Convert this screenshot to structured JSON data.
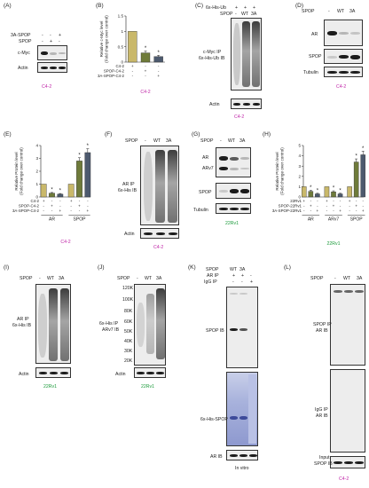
{
  "colors": {
    "condition_label": "#c026a8",
    "cell_label_green": "#1a9a3a",
    "bar_gold": "#c9b86a",
    "bar_olive": "#6f7b3a",
    "bar_slate": "#4d5a6e"
  },
  "panelA": {
    "letter": "(A)",
    "row1": "3A-SPOP",
    "row2": "SPOP",
    "signs1": [
      "-",
      "-",
      "+"
    ],
    "signs2": [
      "-",
      "+",
      "-"
    ],
    "blot1": "c-Myc",
    "blot2": "Actin",
    "cell": "C4-2"
  },
  "panelB": {
    "letter": "(B)",
    "cell": "C4-2"
  },
  "panelC": {
    "letter": "(C)",
    "row1": "6x-His-Ub",
    "row2": "SPOP",
    "signs1": [
      "+",
      "+",
      "+"
    ],
    "cols": [
      "-",
      "WT",
      "3A"
    ],
    "blot1a": "c-Myc IP",
    "blot1b": "6x-His-Ub IB",
    "blot2": "Actin",
    "cell": "C4-2"
  },
  "panelD": {
    "letter": "(D)",
    "row": "SPOP",
    "cols": [
      "-",
      "WT",
      "3A"
    ],
    "blot1": "AR",
    "blot2": "SPOP",
    "blot3": "Tubulin",
    "cell": "C4-2"
  },
  "panelE": {
    "letter": "(E)",
    "cell": "C4-2"
  },
  "panelF": {
    "letter": "(F)",
    "row": "SPOP",
    "cols": [
      "-",
      "WT",
      "3A"
    ],
    "blot1a": "AR IP",
    "blot1b": "6x-His IB",
    "blot2": "Actin",
    "cell": "C4-2"
  },
  "panelG": {
    "letter": "(G)",
    "row": "SPOP",
    "cols": [
      "-",
      "WT",
      "3A"
    ],
    "blot1a": "AR",
    "blot1b": "ARv7",
    "blot2": "SPOP",
    "blot3": "Tubulin",
    "cell": "22Rv1"
  },
  "panelH": {
    "letter": "(H)",
    "cell": "22Rv1"
  },
  "panelI": {
    "letter": "(I)",
    "row": "SPOP",
    "cols": [
      "-",
      "WT",
      "3A"
    ],
    "blot1a": "AR IP",
    "blot1b": "6x-His IB",
    "blot2": "Actin",
    "cell": "22Rv1"
  },
  "panelJ": {
    "letter": "(J)",
    "row": "SPOP",
    "cols": [
      "-",
      "WT",
      "3A"
    ],
    "markers": [
      "120K",
      "100K",
      "80K",
      "60K",
      "50K",
      "40K",
      "30K",
      "20K"
    ],
    "blot1a": "6x-His IP",
    "blot1b": "ARv7 IB",
    "blot2": "Actin",
    "cell": "22Rv1"
  },
  "panelK": {
    "letter": "(K)",
    "row1": "SPOP",
    "row2": "AR IP",
    "row3": "IgG IP",
    "cols": [
      "WT",
      "3A",
      ""
    ],
    "signs2": [
      "+",
      "+",
      "-"
    ],
    "signs3": [
      "-",
      "-",
      "+"
    ],
    "blot1": "SPOP IB",
    "blot2": "6x-His-SPOP",
    "blot3": "AR IB",
    "cell": "In vitro"
  },
  "panelL": {
    "letter": "(L)",
    "row": "SPOP",
    "cols": [
      "-",
      "WT",
      "3A"
    ],
    "blot1a": "SPOP IP",
    "blot1b": "AR IB",
    "blot2a": "IgG IP",
    "blot2b": "AR IB",
    "blot3a": "Input",
    "blot3b": "SPOP IB",
    "cell": "C4-2"
  },
  "chart_data": [
    {
      "type": "bar",
      "panel": "B",
      "ylabel": "Relative c-Myc level (Fold change over control)",
      "ylim": [
        0,
        1.5
      ],
      "yticks": [
        "0",
        "0.5",
        "1",
        "1.5"
      ],
      "row_labels": [
        "C4-2",
        "SPOP-C4-2",
        "3A-SPOP-C4-2"
      ],
      "row_signs": [
        [
          "+",
          "-",
          "-"
        ],
        [
          "-",
          "+",
          "-"
        ],
        [
          "-",
          "-",
          "+"
        ]
      ],
      "values": [
        1.0,
        0.3,
        0.18
      ],
      "errors": [
        0,
        0.06,
        0.04
      ],
      "significance": [
        "",
        "*",
        "*"
      ],
      "colors": [
        "#c9b86a",
        "#6f7b3a",
        "#4d5a6e"
      ]
    },
    {
      "type": "bar",
      "panel": "E",
      "ylabel": "Relative Protein level (Fold change over control)",
      "ylim": [
        0,
        4
      ],
      "yticks": [
        "0",
        "1",
        "2",
        "3",
        "4"
      ],
      "row_labels": [
        "C4-2",
        "SPOP-C4-2",
        "3A-SPOP-C4-2"
      ],
      "row_signs": [
        [
          "+",
          "-",
          "-",
          "+",
          "-",
          "-"
        ],
        [
          "-",
          "+",
          "-",
          "-",
          "+",
          "-"
        ],
        [
          "-",
          "-",
          "+",
          "-",
          "-",
          "+"
        ]
      ],
      "groups": [
        "AR",
        "SPOP"
      ],
      "values": [
        1.0,
        0.3,
        0.22,
        1.0,
        2.8,
        3.45
      ],
      "errors": [
        0,
        0.05,
        0.05,
        0,
        0.25,
        0.3
      ],
      "significance": [
        "",
        "*",
        "*",
        "",
        "*",
        "*"
      ],
      "colors": [
        "#c9b86a",
        "#6f7b3a",
        "#4d5a6e",
        "#c9b86a",
        "#6f7b3a",
        "#4d5a6e"
      ]
    },
    {
      "type": "bar",
      "panel": "H",
      "ylabel": "Relative Protein level (Fold change over control)",
      "ylim": [
        0,
        5
      ],
      "yticks": [
        "0",
        "1",
        "2",
        "3",
        "4",
        "5"
      ],
      "row_labels": [
        "22Rv1",
        "SPOP-22Rv1",
        "3A-SPOP-22Rv1"
      ],
      "row_signs": [
        [
          "+",
          "-",
          "-",
          "+",
          "-",
          "-",
          "+",
          "-",
          "-"
        ],
        [
          "-",
          "+",
          "-",
          "-",
          "+",
          "-",
          "-",
          "+",
          "-"
        ],
        [
          "-",
          "-",
          "+",
          "-",
          "-",
          "+",
          "-",
          "-",
          "+"
        ]
      ],
      "groups": [
        "AR",
        "ARv7",
        "SPOP"
      ],
      "values": [
        1.0,
        0.55,
        0.3,
        1.0,
        0.5,
        0.3,
        1.0,
        3.4,
        4.1
      ],
      "errors": [
        0,
        0.1,
        0.06,
        0,
        0.1,
        0.06,
        0,
        0.3,
        0.35
      ],
      "significance": [
        "",
        "*",
        "*",
        "",
        "*",
        "*",
        "",
        "*",
        "*"
      ],
      "colors": [
        "#c9b86a",
        "#6f7b3a",
        "#4d5a6e",
        "#c9b86a",
        "#6f7b3a",
        "#4d5a6e",
        "#c9b86a",
        "#6f7b3a",
        "#4d5a6e"
      ]
    }
  ]
}
